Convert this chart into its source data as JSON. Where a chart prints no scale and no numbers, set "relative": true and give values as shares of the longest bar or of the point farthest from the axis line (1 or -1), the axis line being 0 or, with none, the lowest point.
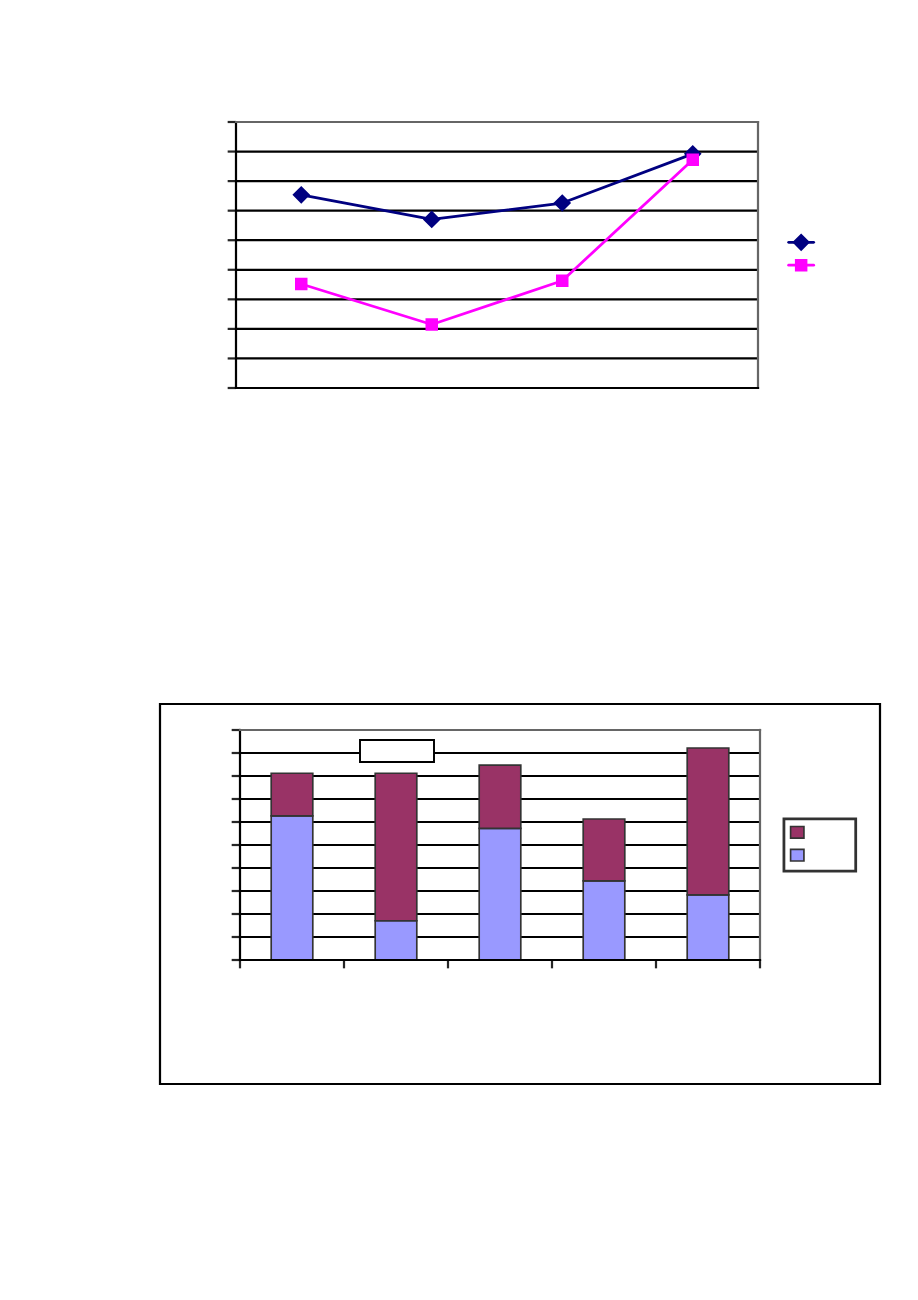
{
  "chart_data": [
    {
      "type": "line",
      "relative": true,
      "categories": [
        null,
        null,
        null,
        null
      ],
      "grid": "y",
      "tick_labels": false,
      "series": [
        {
          "color": "#000080",
          "marker": "diamond",
          "values": [
            0.825,
            0.72,
            0.79,
            1.0
          ]
        },
        {
          "color": "#ff00ff",
          "marker": "square",
          "values": [
            0.444,
            0.271,
            0.458,
            0.975
          ]
        }
      ]
    },
    {
      "type": "bar",
      "stacked": true,
      "relative": true,
      "categories": [
        null,
        null,
        null,
        null,
        null
      ],
      "grid": "y",
      "tick_labels": false,
      "series": [
        {
          "color": "#9999ff",
          "values": [
            0.68,
            0.185,
            0.621,
            0.373,
            0.307
          ]
        },
        {
          "color": "#993366",
          "values": [
            0.201,
            0.696,
            0.298,
            0.292,
            0.693
          ]
        }
      ]
    }
  ]
}
